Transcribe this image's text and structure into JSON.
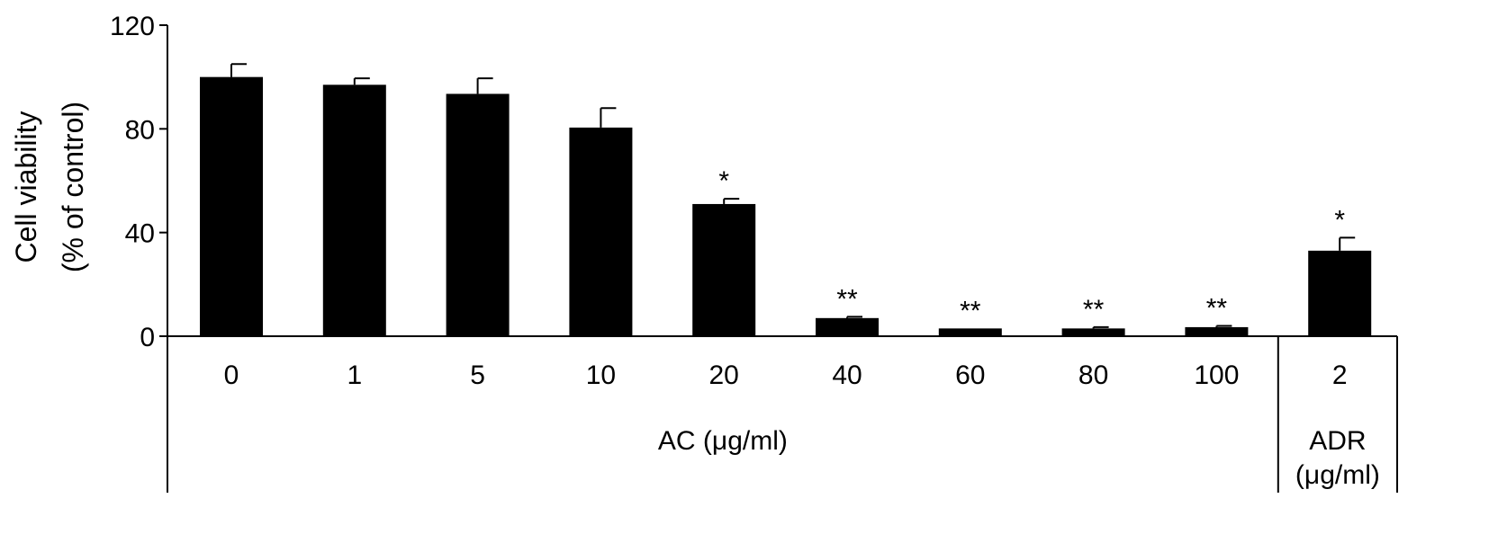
{
  "chart_data": {
    "type": "bar",
    "ylabel_lines": [
      "Cell viability",
      "(% of control)"
    ],
    "ylim": [
      0,
      120
    ],
    "yticks": [
      "0",
      "40",
      "80",
      "120"
    ],
    "categories": [
      "0",
      "1",
      "5",
      "10",
      "20",
      "40",
      "60",
      "80",
      "100",
      "2"
    ],
    "values": [
      100,
      97,
      93.5,
      80.5,
      51,
      7,
      3,
      3,
      3.5,
      33
    ],
    "errors": [
      5,
      2.5,
      6,
      7.5,
      2,
      0.5,
      0,
      0.5,
      0.5,
      5
    ],
    "significance": [
      "",
      "",
      "",
      "",
      "*",
      "**",
      "**",
      "**",
      "**",
      "*"
    ],
    "groups": [
      {
        "label_lines": [
          "AC (μg/ml)"
        ],
        "category_count": 9
      },
      {
        "label_lines": [
          "ADR",
          "(μg/ml)"
        ],
        "category_count": 1
      }
    ],
    "bar_color": "#000000",
    "grid": false,
    "legend": "none"
  }
}
